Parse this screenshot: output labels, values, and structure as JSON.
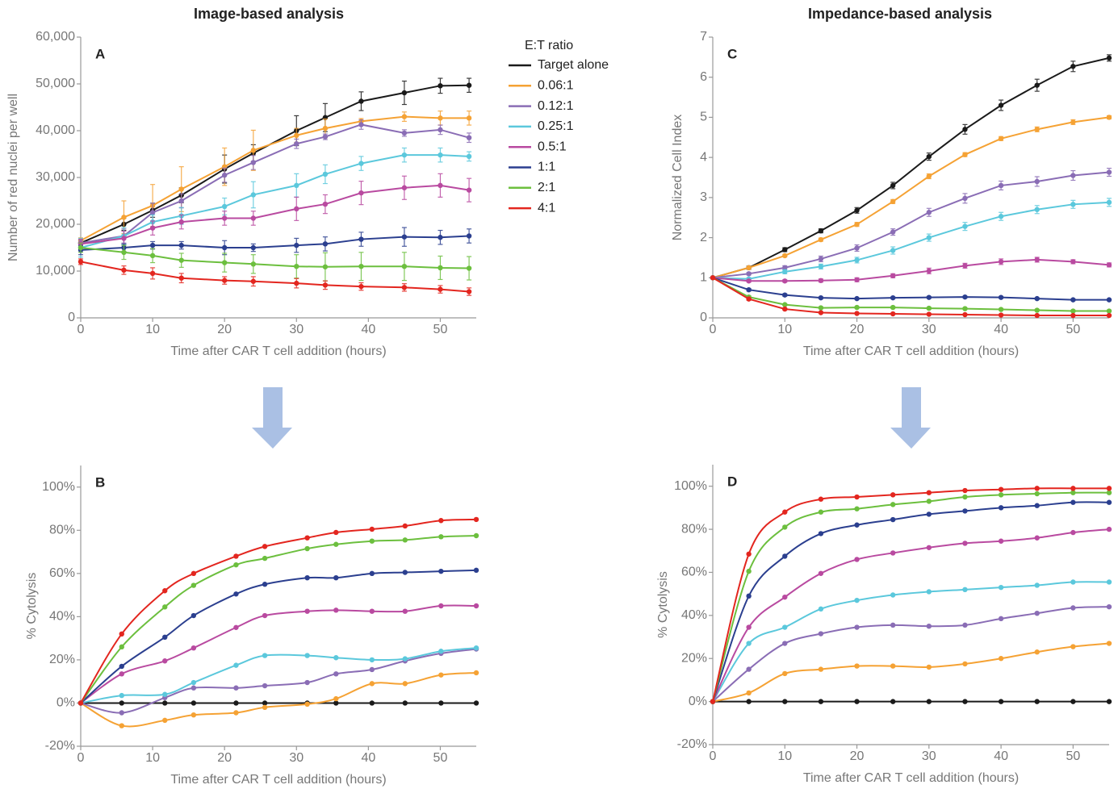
{
  "chart_data": [
    {
      "type": "line",
      "title": "Image-based analysis",
      "label": "A",
      "legend": true,
      "legend_title": "E:T ratio",
      "xlabel": "Time after CAR T cell addition (hours)",
      "ylabel": "Number of red nuclei per well",
      "xlim": [
        0,
        55
      ],
      "xticks": [
        0,
        10,
        20,
        30,
        40,
        50
      ],
      "ylim": [
        0,
        60000
      ],
      "yticks": [
        0,
        {
          "value": 10000,
          "label": "10,000"
        },
        {
          "value": 20000,
          "label": "20,000"
        },
        {
          "value": 30000,
          "label": "30,000"
        },
        {
          "value": 40000,
          "label": "40,000"
        },
        {
          "value": 50000,
          "label": "50,000"
        },
        {
          "value": 60000,
          "label": "60,000"
        }
      ],
      "x": [
        0,
        6,
        10,
        14,
        20,
        24,
        30,
        34,
        39,
        45,
        50,
        54
      ],
      "series": [
        {
          "name": "Target alone",
          "color": "#1a1a1a",
          "values": [
            16000,
            20000,
            23000,
            26200,
            31800,
            35200,
            40000,
            42800,
            46300,
            48100,
            49600,
            49700
          ],
          "errors": [
            600,
            1300,
            1500,
            1600,
            3000,
            1800,
            3200,
            3000,
            2000,
            2500,
            1600,
            1500
          ]
        },
        {
          "name": "0.06:1",
          "color": "#f5a234",
          "values": [
            16500,
            21500,
            24000,
            27500,
            32300,
            35800,
            39000,
            40500,
            42000,
            43000,
            42700,
            42700
          ],
          "errors": [
            600,
            3500,
            4500,
            4800,
            4000,
            4300,
            1500,
            2000,
            600,
            1000,
            1500,
            1500
          ]
        },
        {
          "name": "0.12:1",
          "color": "#8a6db5",
          "values": [
            16000,
            17500,
            22500,
            25000,
            30500,
            33200,
            37200,
            38700,
            41300,
            39500,
            40200,
            38500
          ],
          "errors": [
            600,
            1500,
            2000,
            1500,
            1500,
            1500,
            1000,
            600,
            1000,
            700,
            1000,
            1000
          ]
        },
        {
          "name": "0.25:1",
          "color": "#5bc8dc",
          "values": [
            15000,
            17500,
            20500,
            21800,
            23800,
            26300,
            28300,
            30700,
            33000,
            34800,
            34800,
            34500
          ],
          "errors": [
            2000,
            1800,
            1500,
            1800,
            1800,
            2800,
            2500,
            2000,
            1500,
            1500,
            1500,
            1000
          ]
        },
        {
          "name": "0.5:1",
          "color": "#b94aa0",
          "values": [
            15800,
            17000,
            19200,
            20500,
            21300,
            21300,
            23300,
            24300,
            26700,
            27800,
            28300,
            27300
          ],
          "errors": [
            1000,
            1500,
            1500,
            1500,
            1500,
            1500,
            2500,
            2000,
            2500,
            2500,
            2500,
            2500
          ]
        },
        {
          "name": "1:1",
          "color": "#2b3f8f",
          "values": [
            14500,
            15000,
            15500,
            15500,
            15000,
            15000,
            15500,
            15800,
            16800,
            17300,
            17200,
            17500
          ],
          "errors": [
            1000,
            800,
            800,
            800,
            1500,
            800,
            1500,
            1500,
            1500,
            2000,
            1500,
            1500
          ]
        },
        {
          "name": "2:1",
          "color": "#6cbf3e",
          "values": [
            15000,
            14000,
            13300,
            12300,
            11800,
            11500,
            11000,
            10900,
            11000,
            11000,
            10700,
            10600
          ],
          "errors": [
            1000,
            1500,
            1500,
            1500,
            2000,
            2000,
            2500,
            3000,
            3000,
            3000,
            2500,
            2500
          ]
        },
        {
          "name": "4:1",
          "color": "#e3261f",
          "values": [
            12000,
            10200,
            9500,
            8500,
            8000,
            7800,
            7400,
            7000,
            6700,
            6500,
            6100,
            5600
          ],
          "errors": [
            600,
            900,
            1200,
            1000,
            800,
            1000,
            1000,
            900,
            800,
            800,
            800,
            800
          ]
        }
      ]
    },
    {
      "type": "line",
      "label": "B",
      "smooth": true,
      "xlabel": "Time after CAR T cell addition (hours)",
      "ylabel": "% Cytolysis",
      "xlim": [
        0,
        55
      ],
      "xticks": [
        0,
        10,
        20,
        30,
        40,
        50
      ],
      "ylim": [
        -20,
        110
      ],
      "yticks": [
        {
          "value": -20,
          "label": "-20%"
        },
        {
          "value": 0,
          "label": "0%"
        },
        {
          "value": 20,
          "label": "20%"
        },
        {
          "value": 40,
          "label": "40%"
        },
        {
          "value": 60,
          "label": "60%"
        },
        {
          "value": 80,
          "label": "80%"
        },
        {
          "value": 100,
          "label": "100%"
        }
      ],
      "x": [
        0,
        5.7,
        11.7,
        15.7,
        21.6,
        25.6,
        31.5,
        35.5,
        40.5,
        45.1,
        50.1,
        55
      ],
      "series": [
        {
          "color": "#1a1a1a",
          "values": [
            0,
            0,
            0,
            0,
            0,
            0,
            0,
            0,
            0,
            0,
            0,
            0
          ]
        },
        {
          "color": "#f5a234",
          "values": [
            0,
            -10.5,
            -8,
            -5.5,
            -4.5,
            -2,
            -0.5,
            2,
            9,
            9,
            13,
            14
          ]
        },
        {
          "color": "#8a6db5",
          "values": [
            0,
            -4.5,
            2.5,
            7,
            7,
            8,
            9.5,
            13.5,
            15.5,
            19.5,
            23,
            25
          ]
        },
        {
          "color": "#5bc8dc",
          "values": [
            0,
            3.5,
            4,
            9.5,
            17.5,
            22,
            22,
            21,
            20,
            20.5,
            24,
            25.5
          ]
        },
        {
          "color": "#b94aa0",
          "values": [
            0,
            13.5,
            19.5,
            25.5,
            35,
            40.5,
            42.5,
            43,
            42.5,
            42.5,
            45,
            45
          ]
        },
        {
          "color": "#2b3f8f",
          "values": [
            0,
            17,
            30.5,
            40.5,
            50.5,
            55,
            58,
            58,
            60,
            60.5,
            61,
            61.5
          ]
        },
        {
          "color": "#6cbf3e",
          "values": [
            0,
            26,
            44.5,
            54.5,
            64,
            67,
            71.5,
            73.5,
            75,
            75.5,
            77,
            77.5
          ]
        },
        {
          "color": "#e3261f",
          "values": [
            0,
            32,
            52,
            60,
            68,
            72.5,
            76.5,
            79,
            80.5,
            82,
            84.5,
            85
          ]
        }
      ]
    },
    {
      "type": "line",
      "title": "Impedance-based analysis",
      "label": "C",
      "xlabel": "Time after CAR T cell addition (hours)",
      "ylabel": "Normalized Cell Index",
      "xlim": [
        0,
        55
      ],
      "xticks": [
        0,
        10,
        20,
        30,
        40,
        50
      ],
      "ylim": [
        0,
        7
      ],
      "yticks": [
        0,
        1,
        2,
        3,
        4,
        5,
        6,
        7
      ],
      "x": [
        0,
        5,
        10,
        15,
        20,
        25,
        30,
        35,
        40,
        45,
        50,
        55
      ],
      "series": [
        {
          "color": "#1a1a1a",
          "values": [
            1,
            1.25,
            1.7,
            2.17,
            2.68,
            3.3,
            4.02,
            4.7,
            5.3,
            5.8,
            6.27,
            6.48
          ],
          "errors": [
            0.02,
            0.04,
            0.05,
            0.05,
            0.07,
            0.08,
            0.09,
            0.12,
            0.13,
            0.15,
            0.13,
            0.08
          ]
        },
        {
          "color": "#f5a234",
          "values": [
            1,
            1.25,
            1.55,
            1.95,
            2.33,
            2.9,
            3.53,
            4.07,
            4.47,
            4.7,
            4.88,
            5.0
          ],
          "errors": [
            0.02,
            0.03,
            0.03,
            0.04,
            0.05,
            0.05,
            0.06,
            0.05,
            0.05,
            0.06,
            0.06,
            0.04
          ]
        },
        {
          "color": "#8a6db5",
          "values": [
            1,
            1.1,
            1.25,
            1.47,
            1.74,
            2.14,
            2.63,
            2.98,
            3.3,
            3.4,
            3.55,
            3.63
          ],
          "errors": [
            0.02,
            0.03,
            0.05,
            0.07,
            0.08,
            0.08,
            0.1,
            0.12,
            0.11,
            0.12,
            0.12,
            0.1
          ]
        },
        {
          "color": "#5bc8dc",
          "values": [
            1,
            0.97,
            1.15,
            1.28,
            1.44,
            1.68,
            2.0,
            2.28,
            2.53,
            2.7,
            2.83,
            2.88
          ],
          "errors": [
            0.02,
            0.03,
            0.05,
            0.06,
            0.07,
            0.09,
            0.09,
            0.1,
            0.1,
            0.1,
            0.1,
            0.1
          ]
        },
        {
          "color": "#b94aa0",
          "values": [
            1,
            0.92,
            0.92,
            0.93,
            0.95,
            1.05,
            1.17,
            1.3,
            1.4,
            1.45,
            1.4,
            1.32
          ],
          "errors": [
            0.02,
            0.03,
            0.03,
            0.04,
            0.05,
            0.05,
            0.07,
            0.06,
            0.07,
            0.06,
            0.05,
            0.05
          ]
        },
        {
          "color": "#2b3f8f",
          "values": [
            1,
            0.7,
            0.57,
            0.5,
            0.48,
            0.5,
            0.51,
            0.52,
            0.51,
            0.48,
            0.45,
            0.45
          ],
          "errors": [
            0.02,
            0.03,
            0.03,
            0.02,
            0.02,
            0.02,
            0.02,
            0.02,
            0.02,
            0.02,
            0.02,
            0.02
          ]
        },
        {
          "color": "#6cbf3e",
          "values": [
            1,
            0.52,
            0.33,
            0.25,
            0.26,
            0.26,
            0.24,
            0.23,
            0.21,
            0.19,
            0.17,
            0.17
          ],
          "errors": [
            0.02,
            0.03,
            0.02,
            0.02,
            0.02,
            0.02,
            0.02,
            0.02,
            0.02,
            0.02,
            0.02,
            0.02
          ]
        },
        {
          "color": "#e3261f",
          "values": [
            1,
            0.47,
            0.22,
            0.13,
            0.11,
            0.1,
            0.09,
            0.08,
            0.07,
            0.06,
            0.06,
            0.06
          ],
          "errors": [
            0.02,
            0.03,
            0.02,
            0.01,
            0.01,
            0.01,
            0.01,
            0.01,
            0.01,
            0.01,
            0.01,
            0.01
          ]
        }
      ]
    },
    {
      "type": "line",
      "label": "D",
      "smooth": true,
      "xlabel": "Time after CAR T cell addition (hours)",
      "ylabel": "% Cytolysis",
      "xlim": [
        0,
        55
      ],
      "xticks": [
        0,
        10,
        20,
        30,
        40,
        50
      ],
      "ylim": [
        -20,
        110
      ],
      "yticks": [
        {
          "value": -20,
          "label": "-20%"
        },
        {
          "value": 0,
          "label": "0%"
        },
        {
          "value": 20,
          "label": "20%"
        },
        {
          "value": 40,
          "label": "40%"
        },
        {
          "value": 60,
          "label": "60%"
        },
        {
          "value": 80,
          "label": "80%"
        },
        {
          "value": 100,
          "label": "100%"
        }
      ],
      "x": [
        0,
        5,
        10,
        15,
        20,
        25,
        30,
        35,
        40,
        45,
        50,
        55
      ],
      "series": [
        {
          "color": "#1a1a1a",
          "values": [
            0,
            0,
            0,
            0,
            0,
            0,
            0,
            0,
            0,
            0,
            0,
            0
          ]
        },
        {
          "color": "#f5a234",
          "values": [
            0,
            4,
            13,
            15,
            16.5,
            16.5,
            16,
            17.5,
            20,
            23,
            25.5,
            27
          ]
        },
        {
          "color": "#8a6db5",
          "values": [
            0,
            15,
            27,
            31.5,
            34.5,
            35.5,
            35,
            35.5,
            38.5,
            41,
            43.5,
            44
          ]
        },
        {
          "color": "#5bc8dc",
          "values": [
            0,
            27,
            34.5,
            43,
            47,
            49.5,
            51,
            52,
            53,
            54,
            55.5,
            55.5
          ]
        },
        {
          "color": "#b94aa0",
          "values": [
            0,
            34.5,
            48.5,
            59.5,
            66,
            69,
            71.5,
            73.5,
            74.5,
            76,
            78.5,
            80
          ]
        },
        {
          "color": "#2b3f8f",
          "values": [
            0,
            49,
            67.5,
            78,
            82,
            84.5,
            87,
            88.5,
            90,
            91,
            92.5,
            92.5
          ]
        },
        {
          "color": "#6cbf3e",
          "values": [
            0,
            60.5,
            81,
            88,
            89.5,
            91.5,
            93,
            95,
            96,
            96.5,
            97,
            97
          ]
        },
        {
          "color": "#e3261f",
          "values": [
            0,
            68.5,
            88,
            94,
            95,
            96,
            97,
            98,
            98.5,
            99,
            99,
            99
          ]
        }
      ]
    }
  ]
}
